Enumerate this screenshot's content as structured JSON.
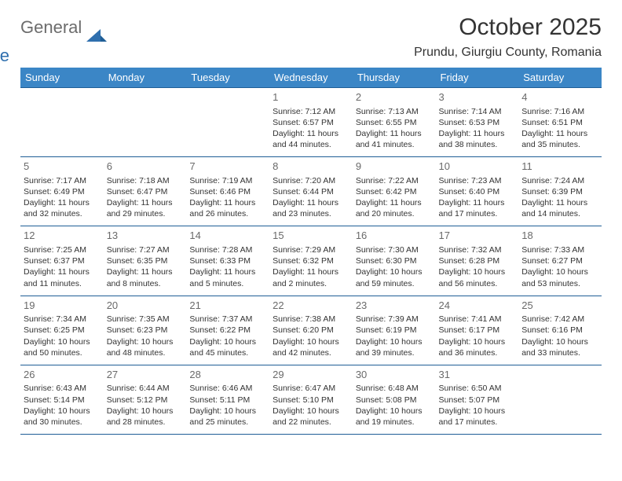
{
  "logo": {
    "general": "General",
    "blue": "Blue",
    "accent_color": "#2f6fae",
    "gray_color": "#6c6c6c"
  },
  "header": {
    "month_title": "October 2025",
    "location": "Prundu, Giurgiu County, Romania"
  },
  "styling": {
    "header_bg": "#3b86c6",
    "header_fg": "#ffffff",
    "row_border": "#1f5e96",
    "body_bg": "#ffffff",
    "text_color": "#333333",
    "daynum_color": "#6a6a6a",
    "cell_fontsize": 10.5,
    "header_fontsize": 13,
    "title_fontsize": 30,
    "location_fontsize": 16
  },
  "weekdays": [
    "Sunday",
    "Monday",
    "Tuesday",
    "Wednesday",
    "Thursday",
    "Friday",
    "Saturday"
  ],
  "weeks": [
    [
      null,
      null,
      null,
      {
        "n": "1",
        "sr": "Sunrise: 7:12 AM",
        "ss": "Sunset: 6:57 PM",
        "dl": "Daylight: 11 hours and 44 minutes."
      },
      {
        "n": "2",
        "sr": "Sunrise: 7:13 AM",
        "ss": "Sunset: 6:55 PM",
        "dl": "Daylight: 11 hours and 41 minutes."
      },
      {
        "n": "3",
        "sr": "Sunrise: 7:14 AM",
        "ss": "Sunset: 6:53 PM",
        "dl": "Daylight: 11 hours and 38 minutes."
      },
      {
        "n": "4",
        "sr": "Sunrise: 7:16 AM",
        "ss": "Sunset: 6:51 PM",
        "dl": "Daylight: 11 hours and 35 minutes."
      }
    ],
    [
      {
        "n": "5",
        "sr": "Sunrise: 7:17 AM",
        "ss": "Sunset: 6:49 PM",
        "dl": "Daylight: 11 hours and 32 minutes."
      },
      {
        "n": "6",
        "sr": "Sunrise: 7:18 AM",
        "ss": "Sunset: 6:47 PM",
        "dl": "Daylight: 11 hours and 29 minutes."
      },
      {
        "n": "7",
        "sr": "Sunrise: 7:19 AM",
        "ss": "Sunset: 6:46 PM",
        "dl": "Daylight: 11 hours and 26 minutes."
      },
      {
        "n": "8",
        "sr": "Sunrise: 7:20 AM",
        "ss": "Sunset: 6:44 PM",
        "dl": "Daylight: 11 hours and 23 minutes."
      },
      {
        "n": "9",
        "sr": "Sunrise: 7:22 AM",
        "ss": "Sunset: 6:42 PM",
        "dl": "Daylight: 11 hours and 20 minutes."
      },
      {
        "n": "10",
        "sr": "Sunrise: 7:23 AM",
        "ss": "Sunset: 6:40 PM",
        "dl": "Daylight: 11 hours and 17 minutes."
      },
      {
        "n": "11",
        "sr": "Sunrise: 7:24 AM",
        "ss": "Sunset: 6:39 PM",
        "dl": "Daylight: 11 hours and 14 minutes."
      }
    ],
    [
      {
        "n": "12",
        "sr": "Sunrise: 7:25 AM",
        "ss": "Sunset: 6:37 PM",
        "dl": "Daylight: 11 hours and 11 minutes."
      },
      {
        "n": "13",
        "sr": "Sunrise: 7:27 AM",
        "ss": "Sunset: 6:35 PM",
        "dl": "Daylight: 11 hours and 8 minutes."
      },
      {
        "n": "14",
        "sr": "Sunrise: 7:28 AM",
        "ss": "Sunset: 6:33 PM",
        "dl": "Daylight: 11 hours and 5 minutes."
      },
      {
        "n": "15",
        "sr": "Sunrise: 7:29 AM",
        "ss": "Sunset: 6:32 PM",
        "dl": "Daylight: 11 hours and 2 minutes."
      },
      {
        "n": "16",
        "sr": "Sunrise: 7:30 AM",
        "ss": "Sunset: 6:30 PM",
        "dl": "Daylight: 10 hours and 59 minutes."
      },
      {
        "n": "17",
        "sr": "Sunrise: 7:32 AM",
        "ss": "Sunset: 6:28 PM",
        "dl": "Daylight: 10 hours and 56 minutes."
      },
      {
        "n": "18",
        "sr": "Sunrise: 7:33 AM",
        "ss": "Sunset: 6:27 PM",
        "dl": "Daylight: 10 hours and 53 minutes."
      }
    ],
    [
      {
        "n": "19",
        "sr": "Sunrise: 7:34 AM",
        "ss": "Sunset: 6:25 PM",
        "dl": "Daylight: 10 hours and 50 minutes."
      },
      {
        "n": "20",
        "sr": "Sunrise: 7:35 AM",
        "ss": "Sunset: 6:23 PM",
        "dl": "Daylight: 10 hours and 48 minutes."
      },
      {
        "n": "21",
        "sr": "Sunrise: 7:37 AM",
        "ss": "Sunset: 6:22 PM",
        "dl": "Daylight: 10 hours and 45 minutes."
      },
      {
        "n": "22",
        "sr": "Sunrise: 7:38 AM",
        "ss": "Sunset: 6:20 PM",
        "dl": "Daylight: 10 hours and 42 minutes."
      },
      {
        "n": "23",
        "sr": "Sunrise: 7:39 AM",
        "ss": "Sunset: 6:19 PM",
        "dl": "Daylight: 10 hours and 39 minutes."
      },
      {
        "n": "24",
        "sr": "Sunrise: 7:41 AM",
        "ss": "Sunset: 6:17 PM",
        "dl": "Daylight: 10 hours and 36 minutes."
      },
      {
        "n": "25",
        "sr": "Sunrise: 7:42 AM",
        "ss": "Sunset: 6:16 PM",
        "dl": "Daylight: 10 hours and 33 minutes."
      }
    ],
    [
      {
        "n": "26",
        "sr": "Sunrise: 6:43 AM",
        "ss": "Sunset: 5:14 PM",
        "dl": "Daylight: 10 hours and 30 minutes."
      },
      {
        "n": "27",
        "sr": "Sunrise: 6:44 AM",
        "ss": "Sunset: 5:12 PM",
        "dl": "Daylight: 10 hours and 28 minutes."
      },
      {
        "n": "28",
        "sr": "Sunrise: 6:46 AM",
        "ss": "Sunset: 5:11 PM",
        "dl": "Daylight: 10 hours and 25 minutes."
      },
      {
        "n": "29",
        "sr": "Sunrise: 6:47 AM",
        "ss": "Sunset: 5:10 PM",
        "dl": "Daylight: 10 hours and 22 minutes."
      },
      {
        "n": "30",
        "sr": "Sunrise: 6:48 AM",
        "ss": "Sunset: 5:08 PM",
        "dl": "Daylight: 10 hours and 19 minutes."
      },
      {
        "n": "31",
        "sr": "Sunrise: 6:50 AM",
        "ss": "Sunset: 5:07 PM",
        "dl": "Daylight: 10 hours and 17 minutes."
      },
      null
    ]
  ]
}
